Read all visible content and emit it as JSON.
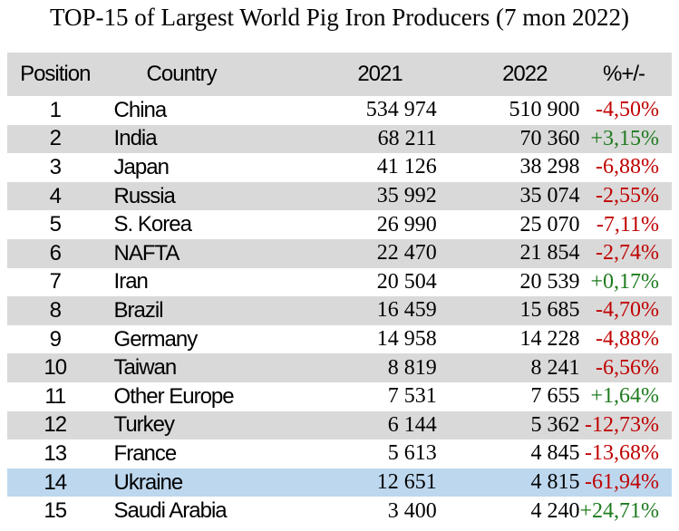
{
  "title": "TOP-15 of Largest World Pig Iron Producers (7 mon 2022)",
  "headers": {
    "position": "Position",
    "country": "Country",
    "y2021": "2021",
    "y2022": "2022",
    "change": "%+/-"
  },
  "colors": {
    "negative": "#c00000",
    "positive": "#1e7b1e",
    "shade": "#d9d9d9",
    "highlight": "#bdd7ee"
  },
  "rows": [
    {
      "position": "1",
      "country": "China",
      "y2021": "534 974",
      "y2022": "510 900",
      "change": "-4,50%"
    },
    {
      "position": "2",
      "country": "India",
      "y2021": "68 211",
      "y2022": "70 360",
      "change": "+3,15%"
    },
    {
      "position": "3",
      "country": "Japan",
      "y2021": "41 126",
      "y2022": "38 298",
      "change": "-6,88%"
    },
    {
      "position": "4",
      "country": "Russia",
      "y2021": "35 992",
      "y2022": "35 074",
      "change": "-2,55%"
    },
    {
      "position": "5",
      "country": "S. Korea",
      "y2021": "26 990",
      "y2022": "25 070",
      "change": "-7,11%"
    },
    {
      "position": "6",
      "country": "NAFTA",
      "y2021": "22 470",
      "y2022": "21 854",
      "change": "-2,74%"
    },
    {
      "position": "7",
      "country": "Iran",
      "y2021": "20 504",
      "y2022": "20 539",
      "change": "+0,17%"
    },
    {
      "position": "8",
      "country": "Brazil",
      "y2021": "16 459",
      "y2022": "15 685",
      "change": "-4,70%"
    },
    {
      "position": "9",
      "country": "Germany",
      "y2021": "14 958",
      "y2022": "14 228",
      "change": "-4,88%"
    },
    {
      "position": "10",
      "country": "Taiwan",
      "y2021": "8 819",
      "y2022": "8 241",
      "change": "-6,56%"
    },
    {
      "position": "11",
      "country": "Other Europe",
      "y2021": "7 531",
      "y2022": "7 655",
      "change": "+1,64%"
    },
    {
      "position": "12",
      "country": "Turkey",
      "y2021": "6 144",
      "y2022": "5 362",
      "change": "-12,73%"
    },
    {
      "position": "13",
      "country": "France",
      "y2021": "5 613",
      "y2022": "4 845",
      "change": "-13,68%"
    },
    {
      "position": "14",
      "country": "Ukraine",
      "y2021": "12 651",
      "y2022": "4 815",
      "change": "-61,94%"
    },
    {
      "position": "15",
      "country": "Saudi Arabia",
      "y2021": "3 400",
      "y2022": "4 240",
      "change": "+24,71%"
    }
  ]
}
